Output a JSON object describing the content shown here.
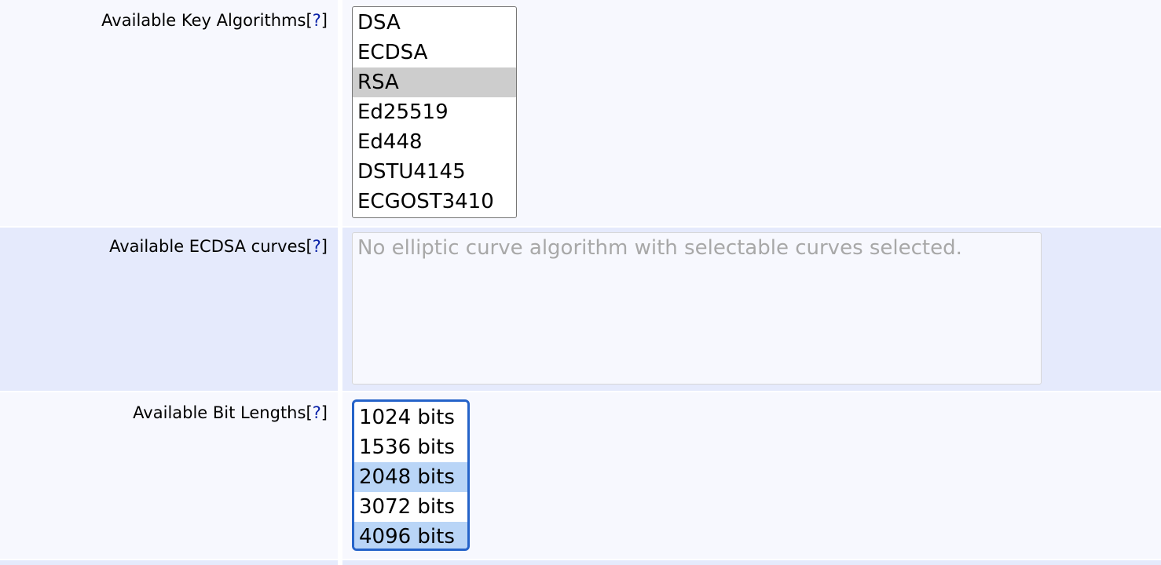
{
  "help_link": "?",
  "rows": [
    {
      "label": "Available Key Algorithms",
      "options": [
        "DSA",
        "ECDSA",
        "RSA",
        "Ed25519",
        "Ed448",
        "DSTU4145",
        "ECGOST3410"
      ],
      "selected": [
        "RSA"
      ]
    },
    {
      "label": "Available ECDSA curves",
      "placeholder": "No elliptic curve algorithm with selectable curves selected."
    },
    {
      "label": "Available Bit Lengths",
      "options": [
        "1024 bits",
        "1536 bits",
        "2048 bits",
        "3072 bits",
        "4096 bits"
      ],
      "selected": [
        "2048 bits",
        "4096 bits"
      ]
    }
  ],
  "colors": {
    "selected_inactive": "#cdcdcd",
    "selected_active": "#b9d5f7",
    "focus_border": "#2563c9",
    "help_link": "#0a22a8"
  }
}
